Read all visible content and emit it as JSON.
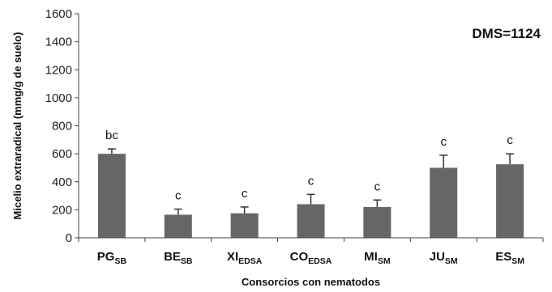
{
  "chart_data": {
    "type": "bar",
    "xlabel": "Consorcios con nematodos",
    "ylabel": "Micelio extraradical (mmg/g de suelo)",
    "ylim": [
      0,
      1600
    ],
    "yticks": [
      0,
      200,
      400,
      600,
      800,
      1000,
      1200,
      1400,
      1600
    ],
    "grid": false,
    "annotation": "DMS=1124",
    "bar_color": "#666666",
    "categories": [
      {
        "main": "PG",
        "sub": "SB"
      },
      {
        "main": "BE",
        "sub": "SB"
      },
      {
        "main": "XI",
        "sub": "EDSA"
      },
      {
        "main": "CO",
        "sub": "EDSA"
      },
      {
        "main": "MI",
        "sub": "SM"
      },
      {
        "main": "JU",
        "sub": "SM"
      },
      {
        "main": "ES",
        "sub": "SM"
      }
    ],
    "values": [
      600,
      165,
      175,
      240,
      220,
      500,
      525
    ],
    "errors": [
      35,
      40,
      45,
      70,
      50,
      90,
      75
    ],
    "significance_letters": [
      "bc",
      "c",
      "c",
      "c",
      "c",
      "c",
      "c"
    ]
  }
}
